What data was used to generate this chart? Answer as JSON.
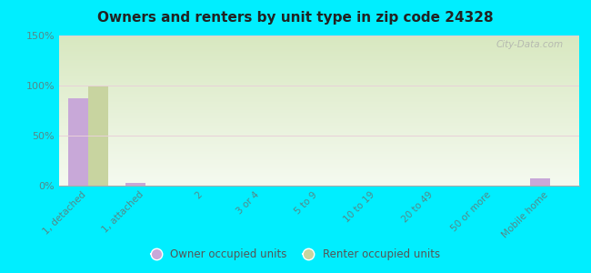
{
  "title": "Owners and renters by unit type in zip code 24328",
  "categories": [
    "1, detached",
    "1, attached",
    "2",
    "3 or 4",
    "5 to 9",
    "10 to 19",
    "20 to 49",
    "50 or more",
    "Mobile home"
  ],
  "owner_values": [
    87,
    3,
    0,
    0,
    0,
    0,
    0,
    0,
    7
  ],
  "renter_values": [
    100,
    0,
    0,
    0,
    0,
    0,
    0,
    0,
    0
  ],
  "owner_color": "#c8a8d8",
  "renter_color": "#c8d4a0",
  "background_color": "#00eeff",
  "plot_bg_top": "#d8e8c0",
  "plot_bg_bottom": "#f5faf0",
  "ylim": [
    0,
    150
  ],
  "yticks": [
    0,
    50,
    100,
    150
  ],
  "ytick_labels": [
    "0%",
    "50%",
    "100%",
    "150%"
  ],
  "watermark": "City-Data.com",
  "legend_owner": "Owner occupied units",
  "legend_renter": "Renter occupied units",
  "bar_width": 0.35
}
